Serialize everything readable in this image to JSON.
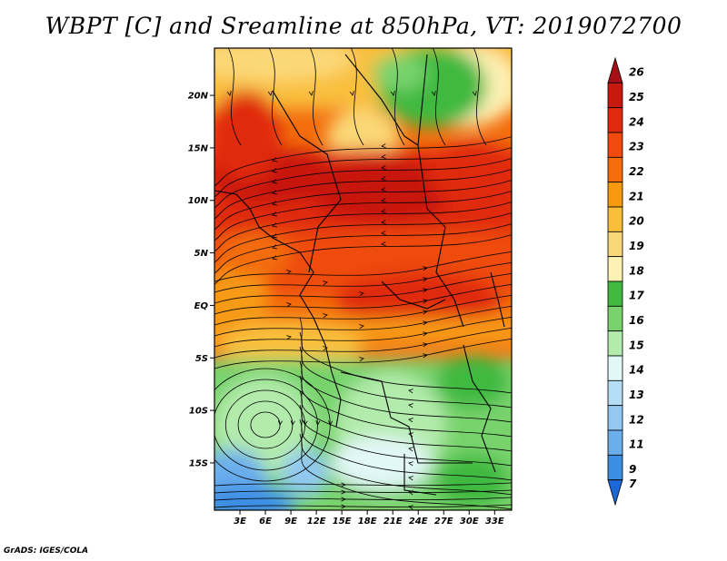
{
  "title": "WBPT [C] and Sreamline at 850hPa, VT: 2019072700",
  "footer": "GrADS: IGES/COLA",
  "map": {
    "variable": "Wet-bulb potential temperature",
    "overlay": "streamlines",
    "lon_range": [
      0,
      35
    ],
    "lat_range": [
      -19.5,
      24.5
    ],
    "lat_ticks": [
      {
        "value": 20,
        "label": "20N"
      },
      {
        "value": 15,
        "label": "15N"
      },
      {
        "value": 10,
        "label": "10N"
      },
      {
        "value": 5,
        "label": "5N"
      },
      {
        "value": 0,
        "label": "EQ"
      },
      {
        "value": -5,
        "label": "5S"
      },
      {
        "value": -10,
        "label": "10S"
      },
      {
        "value": -15,
        "label": "15S"
      }
    ],
    "lon_ticks": [
      {
        "value": 3,
        "label": "3E"
      },
      {
        "value": 6,
        "label": "6E"
      },
      {
        "value": 9,
        "label": "9E"
      },
      {
        "value": 12,
        "label": "12E"
      },
      {
        "value": 15,
        "label": "15E"
      },
      {
        "value": 18,
        "label": "18E"
      },
      {
        "value": 21,
        "label": "21E"
      },
      {
        "value": 24,
        "label": "24E"
      },
      {
        "value": 27,
        "label": "27E"
      },
      {
        "value": 30,
        "label": "30E"
      },
      {
        "value": 33,
        "label": "33E"
      }
    ]
  },
  "colorbar": {
    "levels": [
      {
        "label": "26",
        "color": "#a50f15"
      },
      {
        "label": "25",
        "color": "#c8190e"
      },
      {
        "label": "24",
        "color": "#e02a0c"
      },
      {
        "label": "23",
        "color": "#ee4b0c"
      },
      {
        "label": "22",
        "color": "#f36d0d"
      },
      {
        "label": "21",
        "color": "#f79a12"
      },
      {
        "label": "20",
        "color": "#f9bf3c"
      },
      {
        "label": "19",
        "color": "#fbd877"
      },
      {
        "label": "18",
        "color": "#fdf1b4"
      },
      {
        "label": "17",
        "color": "#3fb93f"
      },
      {
        "label": "16",
        "color": "#78d36d"
      },
      {
        "label": "15",
        "color": "#b2ebab"
      },
      {
        "label": "14",
        "color": "#e2f7f7"
      },
      {
        "label": "13",
        "color": "#b6ddf6"
      },
      {
        "label": "12",
        "color": "#92c8f2"
      },
      {
        "label": "11",
        "color": "#6aaeec"
      },
      {
        "label": "9",
        "color": "#3b8ee4"
      },
      {
        "label": "7",
        "color": "#1c68d6"
      }
    ]
  }
}
